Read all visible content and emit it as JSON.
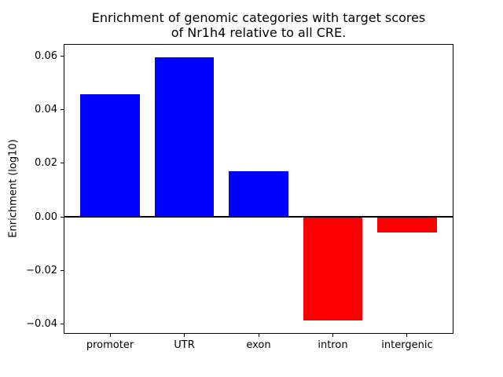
{
  "figure": {
    "title_lines": [
      "Enrichment of genomic categories with target scores",
      "of Nr1h4 relative to all CRE."
    ],
    "ylabel": "Enrichment (log10)"
  },
  "chart_data": {
    "type": "bar",
    "title": "Enrichment of genomic categories with target scores\nof Nr1h4 relative to all CRE.",
    "xlabel": "",
    "ylabel": "Enrichment (log10)",
    "categories": [
      "promoter",
      "UTR",
      "exon",
      "intron",
      "intergenic"
    ],
    "values": [
      0.0457,
      0.0597,
      0.0172,
      -0.0388,
      -0.0058
    ],
    "positive_color": "#0000ff",
    "negative_color": "#ff0000",
    "bar_colors": [
      "#0000ff",
      "#0000ff",
      "#0000ff",
      "#ff0000",
      "#ff0000"
    ],
    "yticks": [
      -0.04,
      -0.02,
      0.0,
      0.02,
      0.04,
      0.06
    ],
    "ytick_labels": [
      "−0.04",
      "−0.02",
      "0.00",
      "0.02",
      "0.04",
      "0.06"
    ],
    "ylim": [
      -0.0437,
      0.0646
    ],
    "baseline": 0,
    "baseline_color": "#000000",
    "bar_width_fraction": 0.8,
    "grid": false,
    "legend": null
  }
}
